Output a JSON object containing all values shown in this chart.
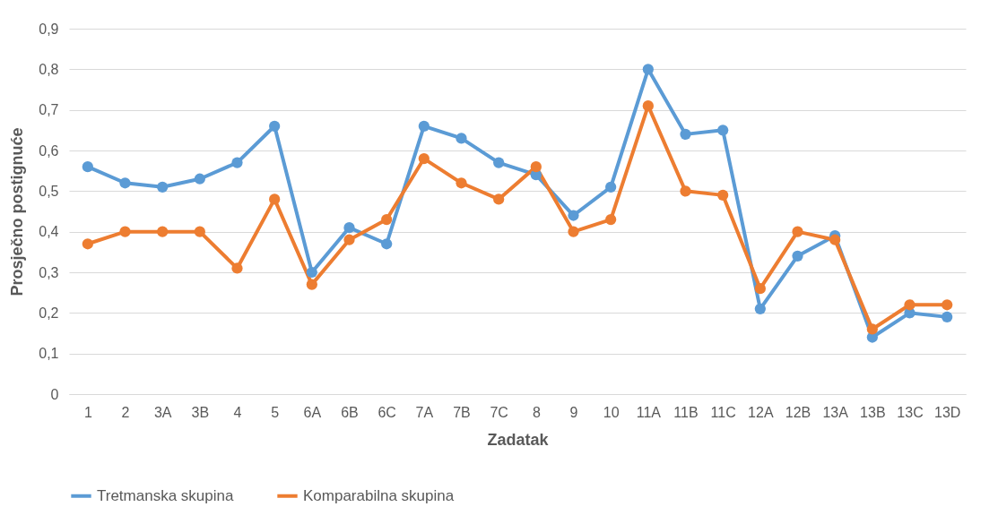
{
  "chart_data": {
    "type": "line",
    "xlabel": "Zadatak",
    "ylabel": "Prosječno postignuće",
    "categories": [
      "1",
      "2",
      "3A",
      "3B",
      "4",
      "5",
      "6A",
      "6B",
      "6C",
      "7A",
      "7B",
      "7C",
      "8",
      "9",
      "10",
      "11A",
      "11B",
      "11C",
      "12A",
      "12B",
      "13A",
      "13B",
      "13C",
      "13D"
    ],
    "series": [
      {
        "name": "Tretmanska skupina",
        "color": "#5b9bd5",
        "values": [
          0.56,
          0.52,
          0.51,
          0.53,
          0.57,
          0.66,
          0.3,
          0.41,
          0.37,
          0.66,
          0.63,
          0.57,
          0.54,
          0.44,
          0.51,
          0.8,
          0.64,
          0.65,
          0.21,
          0.34,
          0.39,
          0.14,
          0.2,
          0.19
        ]
      },
      {
        "name": "Komparabilna skupina",
        "color": "#ed7d31",
        "values": [
          0.37,
          0.4,
          0.4,
          0.4,
          0.31,
          0.48,
          0.27,
          0.38,
          0.43,
          0.58,
          0.52,
          0.48,
          0.56,
          0.4,
          0.43,
          0.71,
          0.5,
          0.49,
          0.26,
          0.4,
          0.38,
          0.16,
          0.22,
          0.22
        ]
      }
    ],
    "ylim": [
      0,
      0.9
    ],
    "yticks": [
      {
        "value": 0,
        "label": "0"
      },
      {
        "value": 0.1,
        "label": "0,1"
      },
      {
        "value": 0.2,
        "label": "0,2"
      },
      {
        "value": 0.3,
        "label": "0,3"
      },
      {
        "value": 0.4,
        "label": "0,4"
      },
      {
        "value": 0.5,
        "label": "0,5"
      },
      {
        "value": 0.6,
        "label": "0,6"
      },
      {
        "value": 0.7,
        "label": "0,7"
      },
      {
        "value": 0.8,
        "label": "0,8"
      },
      {
        "value": 0.9,
        "label": "0,9"
      }
    ],
    "grid": "y",
    "legend": "bottom",
    "marker": "circle",
    "line_style": "solid"
  }
}
